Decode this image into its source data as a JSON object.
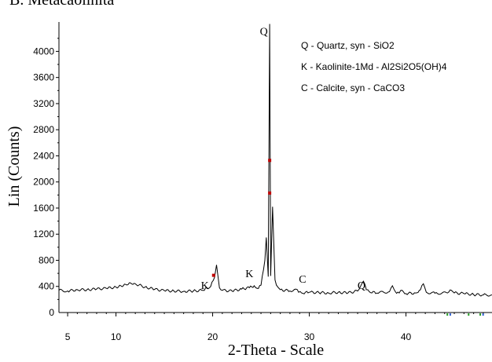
{
  "chart_data": {
    "type": "line",
    "header_partial": "B. Metacaolinita",
    "xlabel": "2-Theta - Scale",
    "ylabel": "Lin (Counts)",
    "xlim": [
      4.1,
      48.9
    ],
    "ylim": [
      0,
      4450
    ],
    "x_ticks": [
      5,
      10,
      20,
      30,
      40
    ],
    "x_tick_labels": [
      "5",
      "10",
      "20",
      "30",
      "40"
    ],
    "y_ticks": [
      0,
      400,
      800,
      1200,
      1600,
      2000,
      2400,
      2800,
      3200,
      3600,
      4000
    ],
    "y_tick_labels": [
      "0",
      "400",
      "800",
      "1200",
      "1600",
      "2000",
      "2400",
      "2800",
      "3200",
      "3600",
      "4000"
    ],
    "grid": false,
    "legend": [
      "Q - Quartz, syn - SiO2",
      "K - Kaolinite-1Md - Al2Si2O5(OH)4",
      "C - Calcite, syn - CaCO3"
    ],
    "peak_labels": [
      {
        "text": "Q",
        "x": 25.3,
        "y": 4250
      },
      {
        "text": "K",
        "x": 19.2,
        "y": 360
      },
      {
        "text": "K",
        "x": 23.8,
        "y": 540
      },
      {
        "text": "C",
        "x": 29.3,
        "y": 460
      },
      {
        "text": "Q",
        "x": 35.4,
        "y": 360
      }
    ],
    "series": [
      {
        "color": "#000000",
        "x": [
          4.1,
          5.0,
          6.0,
          7.0,
          8.0,
          9.0,
          10.0,
          10.5,
          11.0,
          11.5,
          12.0,
          13.0,
          14.0,
          15.0,
          16.0,
          17.0,
          18.0,
          19.0,
          19.8,
          20.2,
          20.4,
          20.7,
          21.0,
          22.0,
          23.0,
          23.8,
          24.3,
          24.6,
          25.0,
          25.4,
          25.55,
          25.75,
          25.9,
          26.0,
          26.2,
          26.45,
          26.6,
          26.8,
          27.0,
          28.0,
          28.6,
          28.9,
          29.2,
          30.0,
          31.0,
          32.0,
          33.0,
          34.0,
          35.0,
          35.3,
          35.6,
          35.9,
          36.2,
          37.0,
          38.3,
          38.6,
          38.9,
          39.3,
          39.6,
          40.0,
          41.0,
          41.5,
          41.8,
          42.1,
          43.0,
          44.3,
          44.7,
          45.0,
          46.0,
          47.0,
          48.0,
          48.9
        ],
        "y": [
          340,
          330,
          350,
          350,
          360,
          370,
          390,
          410,
          430,
          455,
          440,
          390,
          355,
          335,
          330,
          325,
          330,
          340,
          400,
          540,
          730,
          380,
          340,
          330,
          360,
          380,
          410,
          370,
          420,
          800,
          1150,
          550,
          4420,
          560,
          1620,
          500,
          420,
          380,
          350,
          330,
          360,
          310,
          300,
          310,
          305,
          300,
          310,
          300,
          330,
          400,
          480,
          350,
          320,
          300,
          320,
          410,
          320,
          300,
          340,
          290,
          300,
          350,
          440,
          310,
          295,
          300,
          340,
          300,
          290,
          275,
          270,
          270
        ]
      }
    ],
    "markers": [
      {
        "x": 20.1,
        "y": 570,
        "color": "#c00000"
      },
      {
        "x": 25.9,
        "y": 2330,
        "color": "#c00000"
      },
      {
        "x": 25.9,
        "y": 1830,
        "color": "#c00000"
      }
    ],
    "baseline_ticks_colors": [
      "#2a9d2a",
      "#3060d0",
      "#2a9d2a",
      "#2a9d2a",
      "#3060d0"
    ]
  }
}
